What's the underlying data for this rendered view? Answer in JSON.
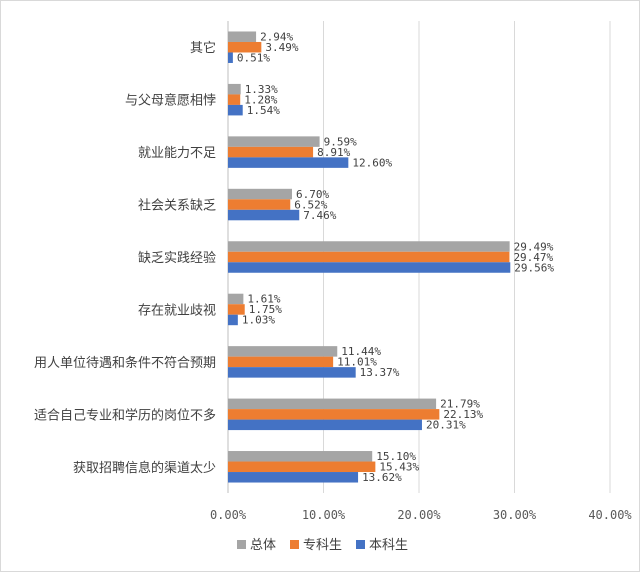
{
  "chart_data": {
    "type": "bar",
    "orientation": "horizontal",
    "title": "",
    "xlabel": "",
    "ylabel": "",
    "xlim": [
      0,
      40
    ],
    "x_ticks": [
      "0.00%",
      "10.00%",
      "20.00%",
      "30.00%",
      "40.00%"
    ],
    "grid": "vertical",
    "legend_position": "bottom",
    "categories": [
      "其它",
      "与父母意愿相悖",
      "就业能力不足",
      "社会关系缺乏",
      "缺乏实践经验",
      "存在就业歧视",
      "用人单位待遇和条件不符合预期",
      "适合自己专业和学历的岗位不多",
      "获取招聘信息的渠道太少"
    ],
    "series": [
      {
        "name": "总体",
        "color": "#a5a5a5",
        "values": [
          2.94,
          1.33,
          9.59,
          6.7,
          29.49,
          1.61,
          11.44,
          21.79,
          15.1
        ],
        "labels": [
          "2.94%",
          "1.33%",
          "9.59%",
          "6.70%",
          "29.49%",
          "1.61%",
          "11.44%",
          "21.79%",
          "15.10%"
        ]
      },
      {
        "name": "专科生",
        "color": "#ed7d31",
        "values": [
          3.49,
          1.28,
          8.91,
          6.52,
          29.47,
          1.75,
          11.01,
          22.13,
          15.43
        ],
        "labels": [
          "3.49%",
          "1.28%",
          "8.91%",
          "6.52%",
          "29.47%",
          "1.75%",
          "11.01%",
          "22.13%",
          "15.43%"
        ]
      },
      {
        "name": "本科生",
        "color": "#4472c4",
        "values": [
          0.51,
          1.54,
          12.6,
          7.46,
          29.56,
          1.03,
          13.37,
          20.31,
          13.62
        ],
        "labels": [
          "0.51%",
          "1.54%",
          "12.60%",
          "7.46%",
          "29.56%",
          "1.03%",
          "13.37%",
          "20.31%",
          "13.62%"
        ]
      }
    ]
  }
}
